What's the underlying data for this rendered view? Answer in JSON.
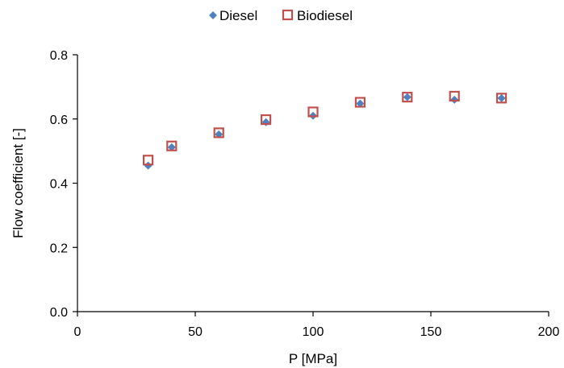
{
  "chart_data": {
    "type": "scatter",
    "title": "",
    "xlabel": "P [MPa]",
    "ylabel": "Flow coefficient [-]",
    "xlim": [
      0,
      200
    ],
    "ylim": [
      0.0,
      0.8
    ],
    "xticks": [
      0,
      50,
      100,
      150,
      200
    ],
    "xtick_labels": [
      "0",
      "50",
      "100",
      "150",
      "200"
    ],
    "yticks": [
      0.0,
      0.2,
      0.4,
      0.6,
      0.8
    ],
    "ytick_labels": [
      "0.0",
      "0.2",
      "0.4",
      "0.6",
      "0.8"
    ],
    "grid": false,
    "legend_position": "top-center",
    "series": [
      {
        "name": "Diesel",
        "marker": "diamond",
        "color": "#4f81bd",
        "x": [
          30,
          40,
          60,
          80,
          100,
          120,
          140,
          160,
          180
        ],
        "y": [
          0.455,
          0.512,
          0.552,
          0.59,
          0.61,
          0.648,
          0.668,
          0.66,
          0.665
        ]
      },
      {
        "name": "Biodiesel",
        "marker": "square-open",
        "color": "#c0504d",
        "x": [
          30,
          40,
          60,
          80,
          100,
          120,
          140,
          160,
          180
        ],
        "y": [
          0.472,
          0.516,
          0.557,
          0.598,
          0.622,
          0.652,
          0.668,
          0.671,
          0.665
        ]
      }
    ]
  }
}
